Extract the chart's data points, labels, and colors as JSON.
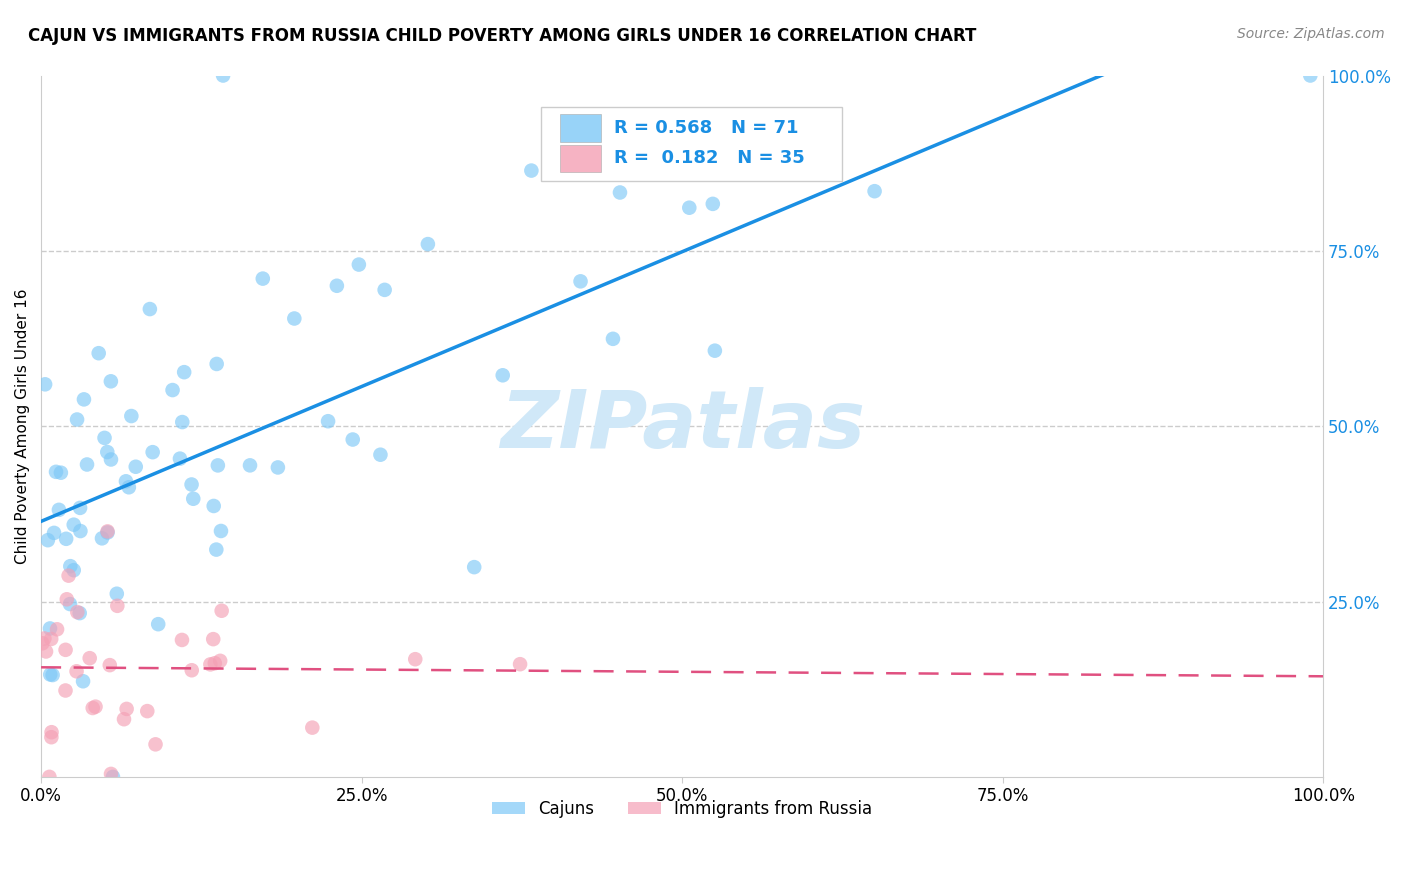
{
  "title": "CAJUN VS IMMIGRANTS FROM RUSSIA CHILD POVERTY AMONG GIRLS UNDER 16 CORRELATION CHART",
  "source": "Source: ZipAtlas.com",
  "ylabel": "Child Poverty Among Girls Under 16",
  "cajun_color": "#7ec8f7",
  "russia_color": "#f4a0b5",
  "cajun_line_color": "#1a8fe3",
  "russia_line_color": "#e05080",
  "cajun_R": 0.568,
  "cajun_N": 71,
  "russia_R": 0.182,
  "russia_N": 35,
  "legend_label_cajun": "Cajuns",
  "legend_label_russia": "Immigrants from Russia",
  "background_color": "#ffffff",
  "watermark_color": "#d0e8f8",
  "right_tick_color": "#1a8fe3"
}
